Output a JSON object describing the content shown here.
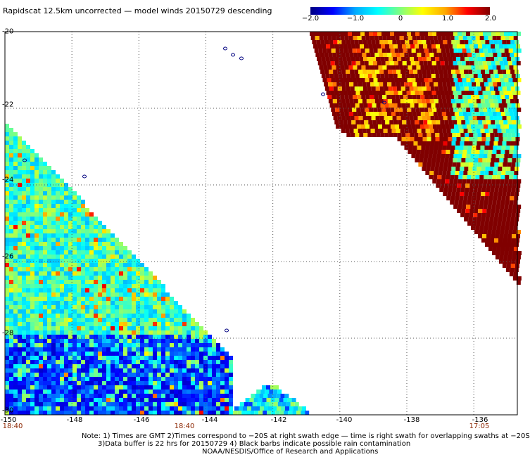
{
  "title": "Rapidscat 12.5km uncorrected — model winds 20150729 descending",
  "colorbar": {
    "min": -2.0,
    "max": 2.0,
    "tick_labels": [
      "−2.0",
      "−1.0",
      "0",
      "1.0",
      "2.0"
    ],
    "tick_values": [
      -2.0,
      -1.0,
      0,
      1.0,
      2.0
    ],
    "colors": [
      "#000083",
      "#0000ff",
      "#00aaff",
      "#00ffff",
      "#7fff7f",
      "#ffff00",
      "#ffaa00",
      "#ff0000",
      "#800000"
    ]
  },
  "axes": {
    "lat_labels": [
      "-20",
      "-22",
      "-24",
      "-26",
      "-28",
      "-30"
    ],
    "lat_values": [
      -20,
      -22,
      -24,
      -26,
      -28,
      -30
    ],
    "lon_labels": [
      "-150",
      "-148",
      "-146",
      "-144",
      "-142",
      "-140",
      "-138",
      "-136"
    ],
    "lon_values": [
      -150,
      -148,
      -146,
      -144,
      -142,
      -140,
      -138,
      -136
    ],
    "lon_range": [
      -150,
      -134.7
    ],
    "lat_range": [
      -20,
      -30
    ],
    "grid": "dotted"
  },
  "time_labels": [
    {
      "text": "18:40",
      "lon": -150
    },
    {
      "text": "18:40",
      "lon": -144
    },
    {
      "text": "17:05",
      "lon": -136
    }
  ],
  "notes": [
    "Note: 1) Times are GMT 2)Times correspond to −20S at right swath edge — time is right swath for overlapping swaths at −20S",
    "3)Data buffer is 22 hrs for 20150729 4) Black barbs indicate possible rain contamination",
    "NOAA/NESDIS/Office of Research and Applications"
  ],
  "colors": {
    "positive_extreme": "#800000",
    "grid": "#555555",
    "coastline": "#000080",
    "time_label": "#8b2500"
  }
}
